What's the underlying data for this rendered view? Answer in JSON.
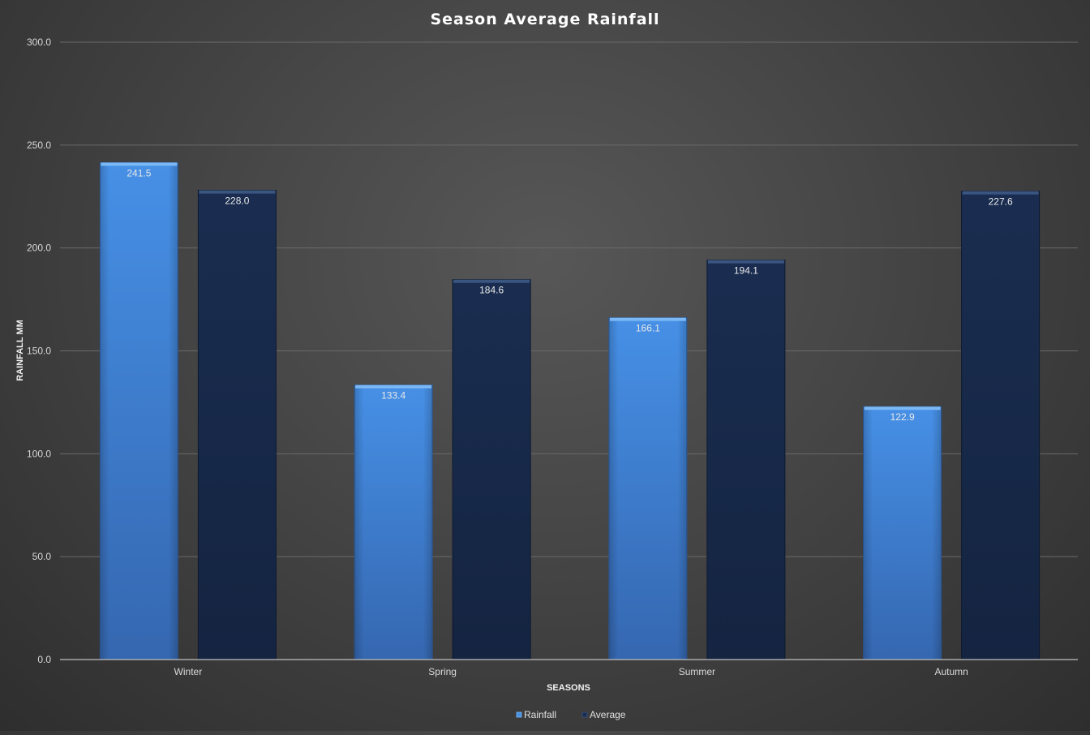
{
  "chart_data": {
    "type": "bar",
    "title": "Season Average Rainfall",
    "xlabel": "SEASONS",
    "ylabel": "RAINFALL MM",
    "categories": [
      "Winter",
      "Spring",
      "Summer",
      "Autumn"
    ],
    "series": [
      {
        "name": "Rainfall",
        "values": [
          241.5,
          133.4,
          166.1,
          122.9
        ],
        "color": "#3f80d6"
      },
      {
        "name": "Average",
        "values": [
          228.0,
          184.6,
          194.1,
          227.6
        ],
        "color": "#17294a"
      }
    ],
    "ylim": [
      0,
      300
    ],
    "yticks": [
      "0.0",
      "50.0",
      "100.0",
      "150.0",
      "200.0",
      "250.0",
      "300.0"
    ],
    "grid": true,
    "legend_position": "bottom"
  }
}
